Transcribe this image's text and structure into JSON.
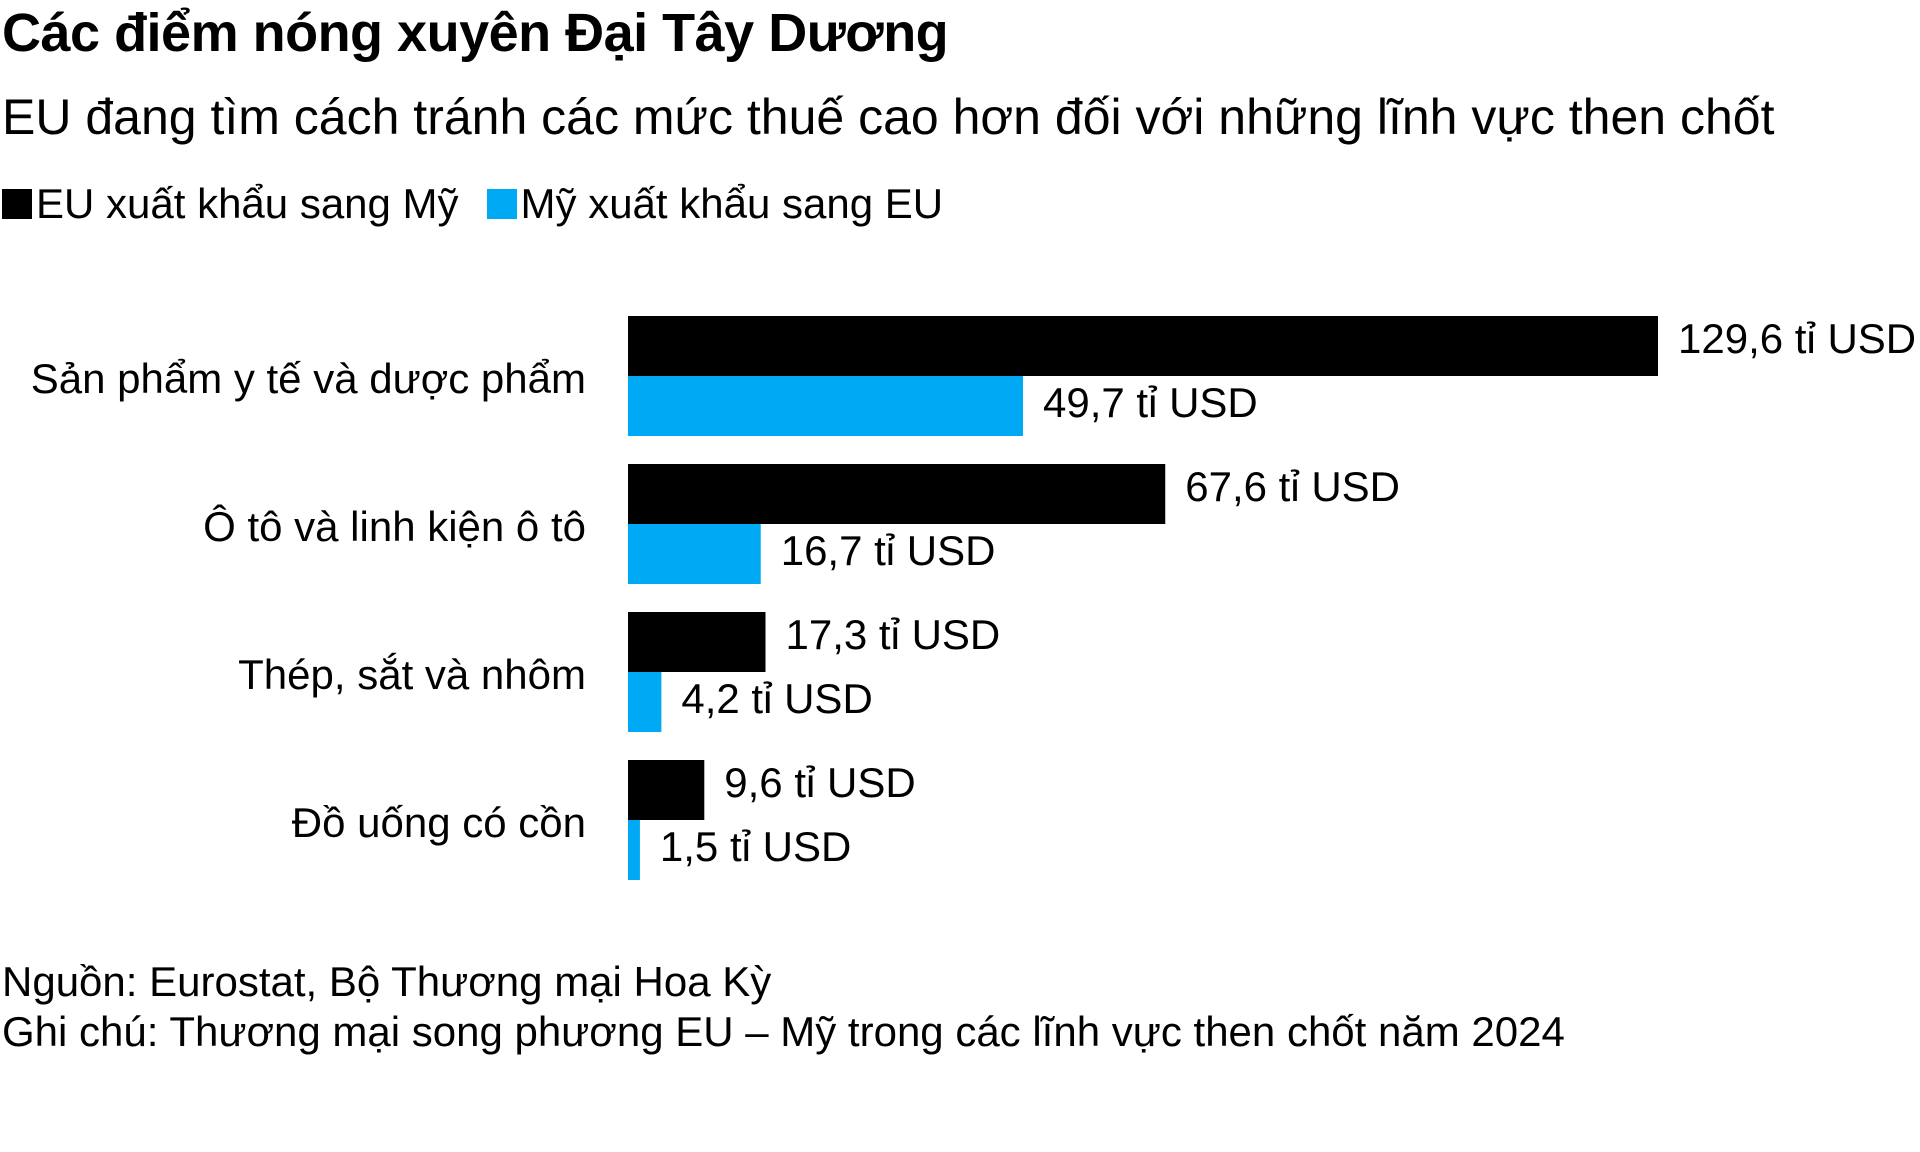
{
  "title": "Các điểm nóng xuyên Đại Tây Dương",
  "subtitle": "EU đang tìm cách tránh các mức thuế cao hơn đối với những lĩnh vực then chốt",
  "legend": [
    {
      "label": "EU xuất khẩu sang Mỹ",
      "color": "#000000"
    },
    {
      "label": "Mỹ xuất khẩu sang EU",
      "color": "#00A9F4"
    }
  ],
  "source": "Nguồn: Eurostat, Bộ Thương mại Hoa Kỳ",
  "note": "Ghi chú: Thương mại song phương EU – Mỹ trong các lĩnh vực then chốt năm 2024",
  "chart_data": {
    "type": "bar",
    "orientation": "horizontal",
    "categories": [
      "Sản phẩm y tế và dược phẩm",
      "Ô tô và linh kiện ô tô",
      "Thép, sắt và nhôm",
      "Đồ uống có cồn"
    ],
    "series": [
      {
        "name": "EU xuất khẩu sang Mỹ",
        "color": "#000000",
        "values": [
          129.6,
          67.6,
          17.3,
          9.6
        ],
        "labels": [
          "129,6 tỉ USD",
          "67,6 tỉ USD",
          "17,3 tỉ USD",
          "9,6 tỉ USD"
        ]
      },
      {
        "name": "Mỹ xuất khẩu sang EU",
        "color": "#00A9F4",
        "values": [
          49.7,
          16.7,
          4.2,
          1.5
        ],
        "labels": [
          "49,7 tỉ USD",
          "16,7 tỉ USD",
          "4,2 tỉ USD",
          "1,5 tỉ USD"
        ]
      }
    ],
    "xlim": [
      0,
      129.6
    ],
    "grid": false,
    "legend_position": "top-left"
  }
}
